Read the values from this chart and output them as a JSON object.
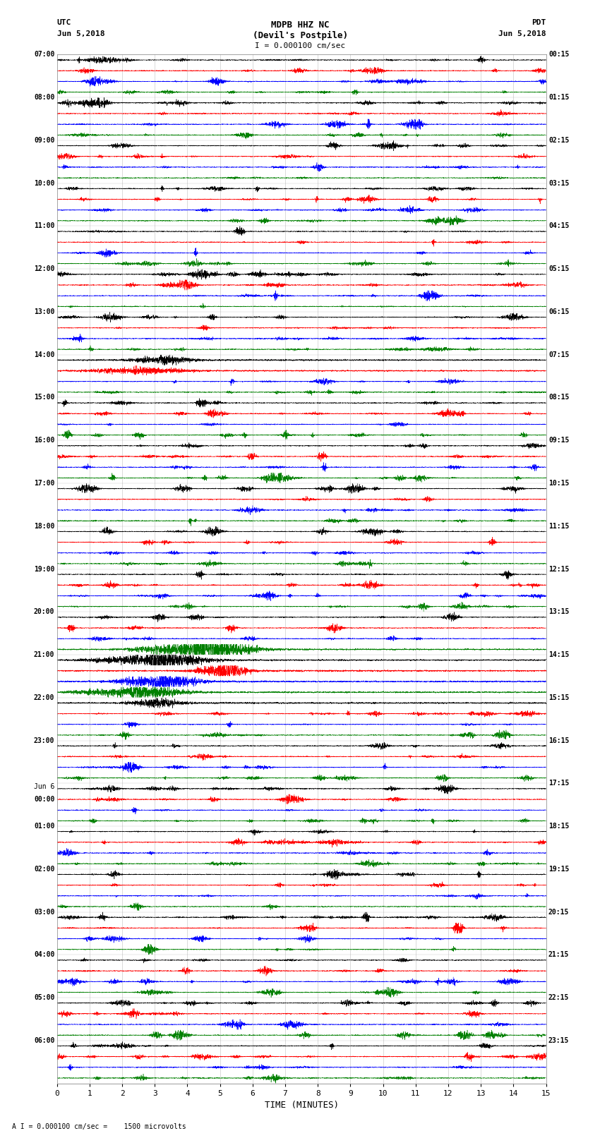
{
  "title_line1": "MDPB HHZ NC",
  "title_line2": "(Devil's Postpile)",
  "scale_label": "I = 0.000100 cm/sec",
  "footer_label": "A I = 0.000100 cm/sec =    1500 microvolts",
  "xlabel": "TIME (MINUTES)",
  "utc_header1": "UTC",
  "utc_header2": "Jun 5,2018",
  "pdt_header1": "PDT",
  "pdt_header2": "Jun 5,2018",
  "hour_labels_utc": [
    "07:00",
    "08:00",
    "09:00",
    "10:00",
    "11:00",
    "12:00",
    "13:00",
    "14:00",
    "15:00",
    "16:00",
    "17:00",
    "18:00",
    "19:00",
    "20:00",
    "21:00",
    "22:00",
    "23:00",
    "Jun 6",
    "01:00",
    "02:00",
    "03:00",
    "04:00",
    "05:00",
    "06:00"
  ],
  "hour_labels_pdt": [
    "00:15",
    "01:15",
    "02:15",
    "03:15",
    "04:15",
    "05:15",
    "06:15",
    "07:15",
    "08:15",
    "09:15",
    "10:15",
    "11:15",
    "12:15",
    "13:15",
    "14:15",
    "15:15",
    "16:15",
    "17:15",
    "18:15",
    "19:15",
    "20:15",
    "21:15",
    "22:15",
    "23:15"
  ],
  "midnight_label": "00:00",
  "colors": [
    "black",
    "red",
    "blue",
    "green"
  ],
  "fig_width": 8.5,
  "fig_height": 16.13,
  "dpi": 100,
  "background": "white",
  "n_rows": 96,
  "n_points": 4500,
  "base_amplitude": 0.28,
  "x_min": 0,
  "x_max": 15
}
